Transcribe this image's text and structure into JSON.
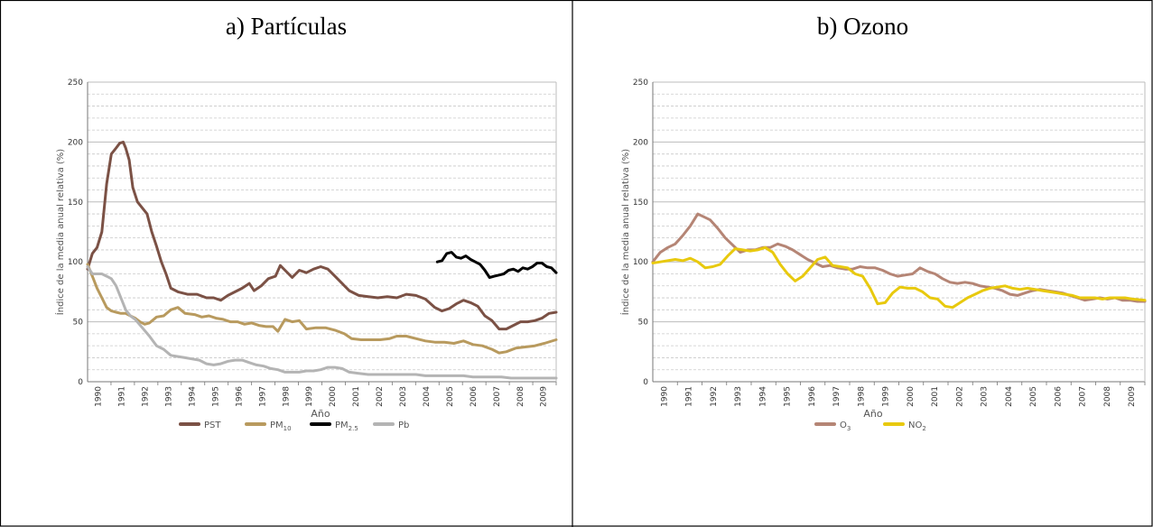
{
  "panels": [
    {
      "title": "a)  Partículas",
      "chart_data": {
        "type": "line",
        "ylabel": "Índice de la media anual relativa (%)",
        "xlabel": "Año",
        "ylim": [
          0,
          250
        ],
        "xlim": [
          1990,
          2009.7
        ],
        "yticks": [
          0,
          50,
          100,
          150,
          200,
          250
        ],
        "xticks": [
          "1990",
          "1991",
          "1992",
          "1993",
          "1994",
          "1995",
          "1996",
          "1997",
          "1998",
          "1999",
          "2000",
          "2001",
          "2002",
          "2003",
          "2004",
          "2005",
          "2006",
          "2007",
          "2008",
          "2009"
        ],
        "grid": "horizontal dashed, solid every 50",
        "legend_position": "bottom",
        "series": [
          {
            "name": "PST",
            "color": "#7b5145",
            "x": [
              1990,
              1990.2,
              1990.4,
              1990.6,
              1990.8,
              1991,
              1991.2,
              1991.35,
              1991.5,
              1991.6,
              1991.75,
              1991.9,
              1992.1,
              1992.3,
              1992.5,
              1992.7,
              1992.9,
              1993.1,
              1993.3,
              1993.5,
              1993.8,
              1994.2,
              1994.6,
              1995,
              1995.3,
              1995.6,
              1995.9,
              1996.2,
              1996.5,
              1996.8,
              1997,
              1997.3,
              1997.6,
              1997.9,
              1998.1,
              1998.3,
              1998.6,
              1998.9,
              1999.2,
              1999.5,
              1999.8,
              2000.1,
              2000.4,
              2000.7,
              2001,
              2001.4,
              2001.8,
              2002.2,
              2002.6,
              2003,
              2003.4,
              2003.8,
              2004.2,
              2004.6,
              2004.9,
              2005.2,
              2005.5,
              2005.8,
              2006.1,
              2006.4,
              2006.7,
              2007,
              2007.3,
              2007.6,
              2007.9,
              2008.2,
              2008.5,
              2008.8,
              2009.1,
              2009.4,
              2009.7
            ],
            "y": [
              94,
              107,
              112,
              125,
              165,
              190,
              195,
              199,
              200,
              195,
              185,
              162,
              150,
              145,
              140,
              125,
              113,
              100,
              90,
              78,
              75,
              73,
              73,
              70,
              70,
              68,
              72,
              75,
              78,
              82,
              76,
              80,
              86,
              88,
              97,
              93,
              87,
              93,
              91,
              94,
              96,
              94,
              88,
              82,
              76,
              72,
              71,
              70,
              71,
              70,
              73,
              72,
              69,
              62,
              59,
              61,
              65,
              68,
              66,
              63,
              55,
              51,
              44,
              44,
              47,
              50,
              50,
              51,
              53,
              57,
              58
            ]
          },
          {
            "name": "PM10",
            "color": "#b89a5e",
            "x": [
              1990,
              1990.2,
              1990.4,
              1990.6,
              1990.8,
              1991,
              1991.2,
              1991.4,
              1991.6,
              1991.8,
              1992,
              1992.2,
              1992.4,
              1992.6,
              1992.9,
              1993.2,
              1993.5,
              1993.8,
              1994.1,
              1994.5,
              1994.8,
              1995.1,
              1995.4,
              1995.7,
              1996,
              1996.3,
              1996.6,
              1996.9,
              1997.2,
              1997.5,
              1997.8,
              1998,
              1998.3,
              1998.6,
              1998.9,
              1999.2,
              1999.6,
              2000,
              2000.4,
              2000.8,
              2001.1,
              2001.5,
              2001.9,
              2002.3,
              2002.7,
              2003,
              2003.4,
              2003.8,
              2004.2,
              2004.6,
              2005,
              2005.4,
              2005.8,
              2006.2,
              2006.6,
              2007,
              2007.3,
              2007.6,
              2008,
              2008.4,
              2008.8,
              2009.2,
              2009.7
            ],
            "y": [
              98,
              88,
              78,
              70,
              62,
              59,
              58,
              57,
              57,
              55,
              53,
              50,
              48,
              49,
              54,
              55,
              60,
              62,
              57,
              56,
              54,
              55,
              53,
              52,
              50,
              50,
              48,
              49,
              47,
              46,
              46,
              42,
              52,
              50,
              51,
              44,
              45,
              45,
              43,
              40,
              36,
              35,
              35,
              35,
              36,
              38,
              38,
              36,
              34,
              33,
              33,
              32,
              34,
              31,
              30,
              27,
              24,
              25,
              28,
              29,
              30,
              32,
              35
            ]
          },
          {
            "name": "PM2.5",
            "color": "#000000",
            "x": [
              2004.7,
              2004.9,
              2005.1,
              2005.3,
              2005.5,
              2005.7,
              2005.9,
              2006.1,
              2006.3,
              2006.5,
              2006.7,
              2006.9,
              2007.1,
              2007.3,
              2007.5,
              2007.7,
              2007.9,
              2008.1,
              2008.3,
              2008.5,
              2008.7,
              2008.9,
              2009.1,
              2009.3,
              2009.5,
              2009.7
            ],
            "y": [
              100,
              101,
              107,
              108,
              104,
              103,
              105,
              102,
              100,
              98,
              93,
              87,
              88,
              89,
              90,
              93,
              94,
              92,
              95,
              94,
              96,
              99,
              99,
              96,
              95,
              91
            ]
          },
          {
            "name": "Pb",
            "color": "#b4b4b4",
            "x": [
              1990,
              1990.2,
              1990.4,
              1990.6,
              1990.8,
              1991,
              1991.2,
              1991.4,
              1991.6,
              1991.8,
              1992,
              1992.3,
              1992.6,
              1992.9,
              1993.2,
              1993.5,
              1993.8,
              1994.1,
              1994.4,
              1994.7,
              1995,
              1995.3,
              1995.6,
              1995.9,
              1996.2,
              1996.5,
              1996.8,
              1997.1,
              1997.4,
              1997.7,
              1998,
              1998.3,
              1998.6,
              1998.9,
              1999.2,
              1999.5,
              1999.8,
              2000.1,
              2000.4,
              2000.7,
              2001,
              2001.4,
              2001.8,
              2002.2,
              2002.6,
              2003,
              2003.4,
              2003.8,
              2004.2,
              2004.6,
              2005,
              2005.4,
              2005.8,
              2006.2,
              2006.6,
              2007,
              2007.4,
              2007.8,
              2008.2,
              2008.6,
              2009,
              2009.7
            ],
            "y": [
              96,
              90,
              90,
              90,
              88,
              86,
              80,
              70,
              60,
              55,
              52,
              45,
              38,
              30,
              27,
              22,
              21,
              20,
              19,
              18,
              15,
              14,
              15,
              17,
              18,
              18,
              16,
              14,
              13,
              11,
              10,
              8,
              8,
              8,
              9,
              9,
              10,
              12,
              12,
              11,
              8,
              7,
              6,
              6,
              6,
              6,
              6,
              6,
              5,
              5,
              5,
              5,
              5,
              4,
              4,
              4,
              4,
              3,
              3,
              3,
              3,
              3
            ]
          }
        ]
      }
    },
    {
      "title": "b)  Ozono",
      "chart_data": {
        "type": "line",
        "ylabel": "Índice de la media anual relativa (%)",
        "xlabel": "Año",
        "ylim": [
          0,
          250
        ],
        "xlim": [
          1990,
          2009.7
        ],
        "yticks": [
          0,
          50,
          100,
          150,
          200,
          250
        ],
        "xticks": [
          "1990",
          "1991",
          "1992",
          "1993",
          "1994",
          "1995",
          "1996",
          "1997",
          "1998",
          "1999",
          "2000",
          "2001",
          "2002",
          "2003",
          "2004",
          "2005",
          "2006",
          "2007",
          "2008",
          "2009"
        ],
        "grid": "horizontal dashed, solid every 50",
        "legend_position": "bottom",
        "series": [
          {
            "name": "O3",
            "color": "#b58575",
            "x": [
              1990,
              1990.3,
              1990.6,
              1990.9,
              1991.2,
              1991.5,
              1991.8,
              1992,
              1992.3,
              1992.6,
              1992.9,
              1993.2,
              1993.5,
              1993.8,
              1994.1,
              1994.4,
              1994.7,
              1995,
              1995.3,
              1995.6,
              1995.9,
              1996.2,
              1996.5,
              1996.8,
              1997.1,
              1997.4,
              1997.7,
              1998,
              1998.3,
              1998.6,
              1998.9,
              1999.2,
              1999.5,
              1999.8,
              2000.1,
              2000.4,
              2000.7,
              2001,
              2001.3,
              2001.6,
              2001.9,
              2002.2,
              2002.5,
              2002.8,
              2003.1,
              2003.4,
              2003.7,
              2004,
              2004.3,
              2004.6,
              2004.9,
              2005.2,
              2005.5,
              2005.8,
              2006.1,
              2006.4,
              2006.7,
              2007,
              2007.3,
              2007.6,
              2007.9,
              2008.2,
              2008.5,
              2008.8,
              2009.1,
              2009.4,
              2009.7
            ],
            "y": [
              100,
              108,
              112,
              115,
              122,
              130,
              140,
              138,
              135,
              128,
              120,
              114,
              108,
              110,
              110,
              112,
              112,
              115,
              113,
              110,
              106,
              102,
              99,
              96,
              97,
              95,
              94,
              94,
              96,
              95,
              95,
              93,
              90,
              88,
              89,
              90,
              95,
              92,
              90,
              86,
              83,
              82,
              83,
              82,
              80,
              79,
              78,
              76,
              73,
              72,
              74,
              76,
              77,
              76,
              75,
              74,
              72,
              70,
              68,
              69,
              70,
              69,
              70,
              68,
              68,
              67,
              67
            ]
          },
          {
            "name": "NO2",
            "color": "#e8c90e",
            "x": [
              1990,
              1990.3,
              1990.6,
              1990.9,
              1991.2,
              1991.5,
              1991.8,
              1992.1,
              1992.4,
              1992.7,
              1993,
              1993.3,
              1993.6,
              1993.9,
              1994.2,
              1994.5,
              1994.8,
              1995.1,
              1995.4,
              1995.7,
              1996,
              1996.3,
              1996.6,
              1996.9,
              1997.2,
              1997.5,
              1997.8,
              1998.1,
              1998.4,
              1998.7,
              1999,
              1999.3,
              1999.6,
              1999.9,
              2000.2,
              2000.5,
              2000.8,
              2001.1,
              2001.4,
              2001.7,
              2002,
              2002.3,
              2002.6,
              2002.9,
              2003.2,
              2003.5,
              2003.8,
              2004.1,
              2004.4,
              2004.7,
              2005,
              2005.3,
              2005.6,
              2005.9,
              2006.2,
              2006.5,
              2006.8,
              2007.1,
              2007.4,
              2007.7,
              2008,
              2008.3,
              2008.6,
              2008.9,
              2009.2,
              2009.7
            ],
            "y": [
              99,
              100,
              101,
              102,
              101,
              103,
              100,
              95,
              96,
              98,
              105,
              111,
              110,
              109,
              110,
              112,
              108,
              98,
              90,
              84,
              88,
              95,
              102,
              104,
              97,
              96,
              95,
              90,
              88,
              78,
              65,
              66,
              74,
              79,
              78,
              78,
              75,
              70,
              69,
              63,
              62,
              66,
              70,
              73,
              76,
              78,
              79,
              80,
              78,
              77,
              78,
              77,
              76,
              75,
              74,
              73,
              72,
              70,
              70,
              70,
              69,
              70,
              70,
              70,
              69,
              68
            ]
          }
        ]
      }
    }
  ]
}
